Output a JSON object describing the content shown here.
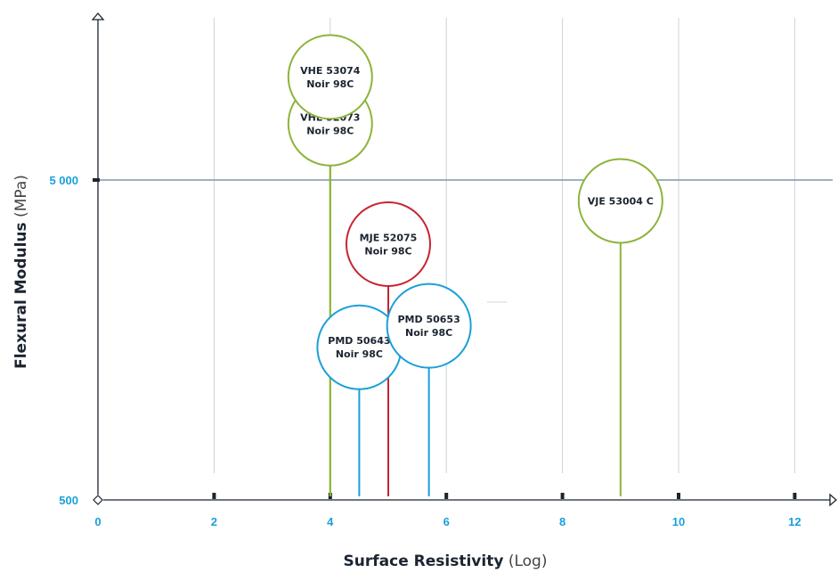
{
  "chart_data": {
    "type": "scatter",
    "xlabel": {
      "main": "Surface Resistivity",
      "unit": "(Log)"
    },
    "ylabel": {
      "main": "Flexural Modulus",
      "unit": "(MPa)"
    },
    "x_ticks": [
      "0",
      "2",
      "4",
      "6",
      "8",
      "10",
      "12"
    ],
    "y_ticks": [
      "500",
      "5 000"
    ],
    "xlim": [
      0,
      12.5
    ],
    "y_scale": "log",
    "ylim": [
      500,
      30000
    ],
    "grid": "vertical lines at even x ticks; horizontal line at 5 000",
    "colors": {
      "axis": "#1b2430",
      "tick_label": "#1a9fd8",
      "grid": "#c9d3dc",
      "reference_line": "#7d96ab",
      "green": "#8cb43a",
      "red": "#c8242e",
      "blue": "#1a9fd8"
    },
    "points": [
      {
        "lines": [
          "VHE 52073",
          "Noir 98C"
        ],
        "x": 4.0,
        "y": 7500,
        "color": "green"
      },
      {
        "lines": [
          "VHE 53074",
          "Noir 98C"
        ],
        "x": 4.0,
        "y": 10500,
        "color": "green"
      },
      {
        "lines": [
          "MJE 52075",
          "Noir 98C"
        ],
        "x": 5.0,
        "y": 3150,
        "color": "red"
      },
      {
        "lines": [
          "PMD 50643",
          "Noir 98C"
        ],
        "x": 4.5,
        "y": 1500,
        "color": "blue"
      },
      {
        "lines": [
          "PMD 50653",
          "Noir 98C"
        ],
        "x": 5.7,
        "y": 1750,
        "color": "blue"
      },
      {
        "lines": [
          "VJE 53004 C"
        ],
        "x": 9.0,
        "y": 4300,
        "color": "green"
      }
    ]
  }
}
